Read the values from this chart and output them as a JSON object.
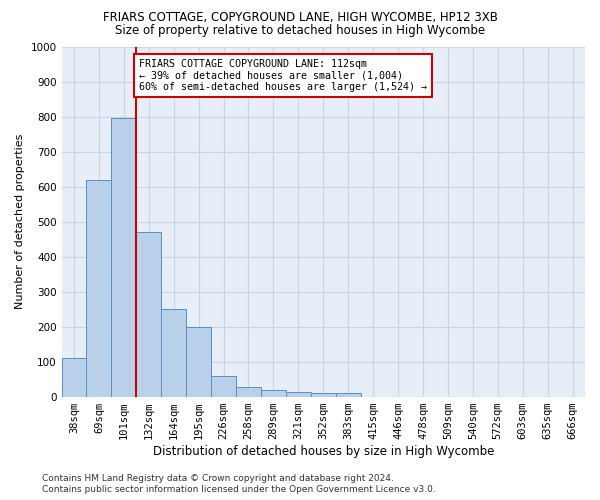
{
  "title": "FRIARS COTTAGE, COPYGROUND LANE, HIGH WYCOMBE, HP12 3XB",
  "subtitle": "Size of property relative to detached houses in High Wycombe",
  "xlabel": "Distribution of detached houses by size in High Wycombe",
  "ylabel": "Number of detached properties",
  "footnote1": "Contains HM Land Registry data © Crown copyright and database right 2024.",
  "footnote2": "Contains public sector information licensed under the Open Government Licence v3.0.",
  "bar_labels": [
    "38sqm",
    "69sqm",
    "101sqm",
    "132sqm",
    "164sqm",
    "195sqm",
    "226sqm",
    "258sqm",
    "289sqm",
    "321sqm",
    "352sqm",
    "383sqm",
    "415sqm",
    "446sqm",
    "478sqm",
    "509sqm",
    "540sqm",
    "572sqm",
    "603sqm",
    "635sqm",
    "666sqm"
  ],
  "bar_values": [
    110,
    620,
    795,
    470,
    250,
    200,
    60,
    27,
    18,
    13,
    10,
    9,
    0,
    0,
    0,
    0,
    0,
    0,
    0,
    0,
    0
  ],
  "bar_color": "#b8d0ea",
  "bar_edge_color": "#5a8fc0",
  "ylim": [
    0,
    1000
  ],
  "yticks": [
    0,
    100,
    200,
    300,
    400,
    500,
    600,
    700,
    800,
    900,
    1000
  ],
  "vline_x": 2.5,
  "vline_color": "#cc0000",
  "annotation_line1": "FRIARS COTTAGE COPYGROUND LANE: 112sqm",
  "annotation_line2": "← 39% of detached houses are smaller (1,004)",
  "annotation_line3": "60% of semi-detached houses are larger (1,524) →",
  "annotation_box_color": "#cc0000",
  "annotation_box_bg": "#ffffff",
  "grid_color": "#c8d4e8",
  "bg_color": "#e8eef8",
  "title_fontsize": 8.5,
  "subtitle_fontsize": 8.5,
  "ylabel_fontsize": 8,
  "xlabel_fontsize": 8.5,
  "tick_fontsize": 7.5,
  "footnote_fontsize": 6.5
}
